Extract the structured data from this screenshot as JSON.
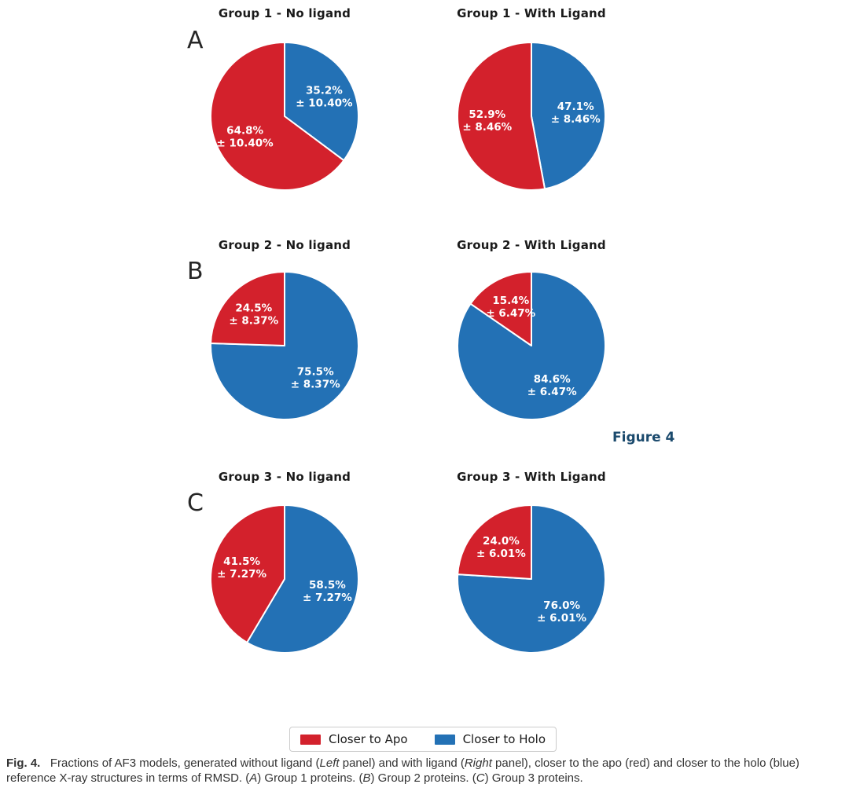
{
  "figure_label": "Figure 4",
  "colors": {
    "apo": "#d3212c",
    "holo": "#2371b5",
    "figure_label": "#1b4a6d"
  },
  "legend": {
    "items": [
      {
        "key": "apo",
        "label": "Closer to Apo"
      },
      {
        "key": "holo",
        "label": "Closer to Holo"
      }
    ]
  },
  "caption": {
    "segments": [
      {
        "t": "Fig. 4.",
        "b": true
      },
      {
        "t": "   Fractions of AF3 models, generated without ligand ("
      },
      {
        "t": "Left",
        "i": true
      },
      {
        "t": " panel) and with ligand ("
      },
      {
        "t": "Right",
        "i": true
      },
      {
        "t": " panel), closer to the apo (red) and closer to the holo (blue) reference X-ray structures in terms of RMSD. ("
      },
      {
        "t": "A",
        "i": true
      },
      {
        "t": ") Group 1 proteins. ("
      },
      {
        "t": "B",
        "i": true
      },
      {
        "t": ") Group 2 proteins. ("
      },
      {
        "t": "C",
        "i": true
      },
      {
        "t": ") Group 3 proteins."
      }
    ]
  },
  "chart_data": {
    "type": "pie",
    "legend_position": "bottom",
    "start_angle": 90,
    "series_colors": {
      "Closer to Apo": "#d3212c",
      "Closer to Holo": "#2371b5"
    },
    "panels": [
      {
        "letter": "A",
        "charts": [
          {
            "title": "Group 1 - No ligand",
            "slices": [
              {
                "name": "Closer to Apo",
                "value": 64.8,
                "error": 10.4,
                "pct_label": "64.8%",
                "err_label": "± 10.40%"
              },
              {
                "name": "Closer to Holo",
                "value": 35.2,
                "error": 10.4,
                "pct_label": "35.2%",
                "err_label": "± 10.40%"
              }
            ]
          },
          {
            "title": "Group 1 - With Ligand",
            "slices": [
              {
                "name": "Closer to Apo",
                "value": 52.9,
                "error": 8.46,
                "pct_label": "52.9%",
                "err_label": "± 8.46%"
              },
              {
                "name": "Closer to Holo",
                "value": 47.1,
                "error": 8.46,
                "pct_label": "47.1%",
                "err_label": "± 8.46%"
              }
            ]
          }
        ]
      },
      {
        "letter": "B",
        "charts": [
          {
            "title": "Group 2 - No ligand",
            "slices": [
              {
                "name": "Closer to Apo",
                "value": 24.5,
                "error": 8.37,
                "pct_label": "24.5%",
                "err_label": "± 8.37%"
              },
              {
                "name": "Closer to Holo",
                "value": 75.5,
                "error": 8.37,
                "pct_label": "75.5%",
                "err_label": "± 8.37%"
              }
            ]
          },
          {
            "title": "Group 2 - With Ligand",
            "slices": [
              {
                "name": "Closer to Apo",
                "value": 15.4,
                "error": 6.47,
                "pct_label": "15.4%",
                "err_label": "± 6.47%"
              },
              {
                "name": "Closer to Holo",
                "value": 84.6,
                "error": 6.47,
                "pct_label": "84.6%",
                "err_label": "± 6.47%"
              }
            ]
          }
        ]
      },
      {
        "letter": "C",
        "charts": [
          {
            "title": "Group 3 - No ligand",
            "slices": [
              {
                "name": "Closer to Apo",
                "value": 41.5,
                "error": 7.27,
                "pct_label": "41.5%",
                "err_label": "± 7.27%"
              },
              {
                "name": "Closer to Holo",
                "value": 58.5,
                "error": 7.27,
                "pct_label": "58.5%",
                "err_label": "± 7.27%"
              }
            ]
          },
          {
            "title": "Group 3 - With Ligand",
            "slices": [
              {
                "name": "Closer to Apo",
                "value": 24.0,
                "error": 6.01,
                "pct_label": "24.0%",
                "err_label": "± 6.01%"
              },
              {
                "name": "Closer to Holo",
                "value": 76.0,
                "error": 6.01,
                "pct_label": "76.0%",
                "err_label": "± 6.01%"
              }
            ]
          }
        ]
      }
    ]
  }
}
